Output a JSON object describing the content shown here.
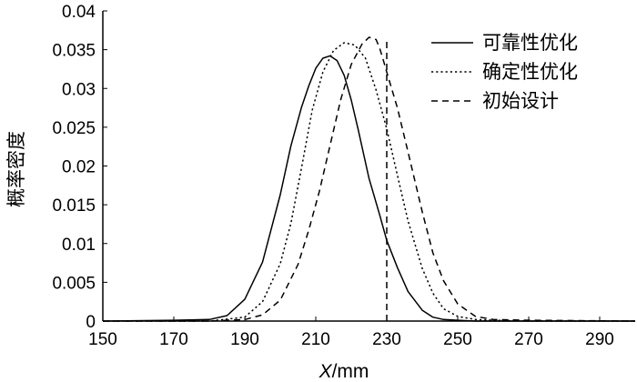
{
  "chart_data": {
    "type": "line",
    "xlabel": "X/mm",
    "xlabel_italic_part": "X",
    "xlabel_unit_part": "/mm",
    "ylabel": "概率密度",
    "xlim": [
      150,
      300
    ],
    "ylim": [
      0,
      0.04
    ],
    "xticks": [
      150,
      170,
      190,
      210,
      230,
      250,
      270,
      290
    ],
    "yticks": [
      0,
      0.005,
      0.01,
      0.015,
      0.02,
      0.025,
      0.03,
      0.035,
      0.04
    ],
    "ytick_labels": [
      "0",
      "0.005",
      "0.01",
      "0.015",
      "0.02",
      "0.025",
      "0.03",
      "0.035",
      "0.04"
    ],
    "grid": false,
    "legend_position": "top-right",
    "series": [
      {
        "name": "可靠性优化",
        "style": "solid",
        "x": [
          150,
          170,
          180,
          185,
          190,
          195,
          200,
          203,
          206,
          208,
          210,
          212,
          214,
          216,
          218,
          220,
          222,
          225,
          228,
          230,
          233,
          236,
          240,
          243,
          246,
          250,
          255,
          260,
          270,
          300
        ],
        "y": [
          0,
          0.0001,
          0.0002,
          0.0007,
          0.0028,
          0.0076,
          0.0163,
          0.0226,
          0.0276,
          0.0303,
          0.0326,
          0.0339,
          0.0342,
          0.0336,
          0.0317,
          0.0285,
          0.0246,
          0.0184,
          0.0137,
          0.0104,
          0.0069,
          0.0038,
          0.0014,
          0.0005,
          0.0002,
          0.0001,
          0,
          0,
          0,
          0
        ]
      },
      {
        "name": "确定性优化",
        "style": "dotted",
        "x": [
          150,
          180,
          190,
          195,
          200,
          203,
          206,
          209,
          212,
          215,
          218,
          221,
          224,
          227,
          230,
          233,
          236,
          240,
          243,
          246,
          250,
          255,
          260,
          270,
          300
        ],
        "y": [
          0,
          0,
          0.0005,
          0.0025,
          0.0074,
          0.0126,
          0.0198,
          0.0272,
          0.0321,
          0.0349,
          0.0359,
          0.0356,
          0.0339,
          0.0298,
          0.0248,
          0.0188,
          0.0129,
          0.0068,
          0.0036,
          0.0016,
          0.0006,
          0.0002,
          0.0001,
          0,
          0
        ]
      },
      {
        "name": "初始设计",
        "style": "dashed",
        "x": [
          150,
          180,
          190,
          195,
          200,
          205,
          208,
          211,
          214,
          217,
          220,
          223,
          225,
          227,
          228,
          229,
          230,
          233,
          236,
          240,
          243,
          246,
          250,
          255,
          260,
          270,
          300
        ],
        "y": [
          0,
          0,
          0.0002,
          0.0008,
          0.0027,
          0.0073,
          0.0117,
          0.0167,
          0.0226,
          0.0285,
          0.0331,
          0.0357,
          0.0366,
          0.0363,
          0.0352,
          0.0337,
          0.0321,
          0.0275,
          0.0218,
          0.0141,
          0.0088,
          0.0052,
          0.0022,
          0.0006,
          0.0002,
          0.0001,
          0
        ]
      },
      {
        "name": "",
        "style": "dashed",
        "x": [
          230,
          230
        ],
        "y": [
          0,
          0.0366
        ]
      }
    ]
  }
}
